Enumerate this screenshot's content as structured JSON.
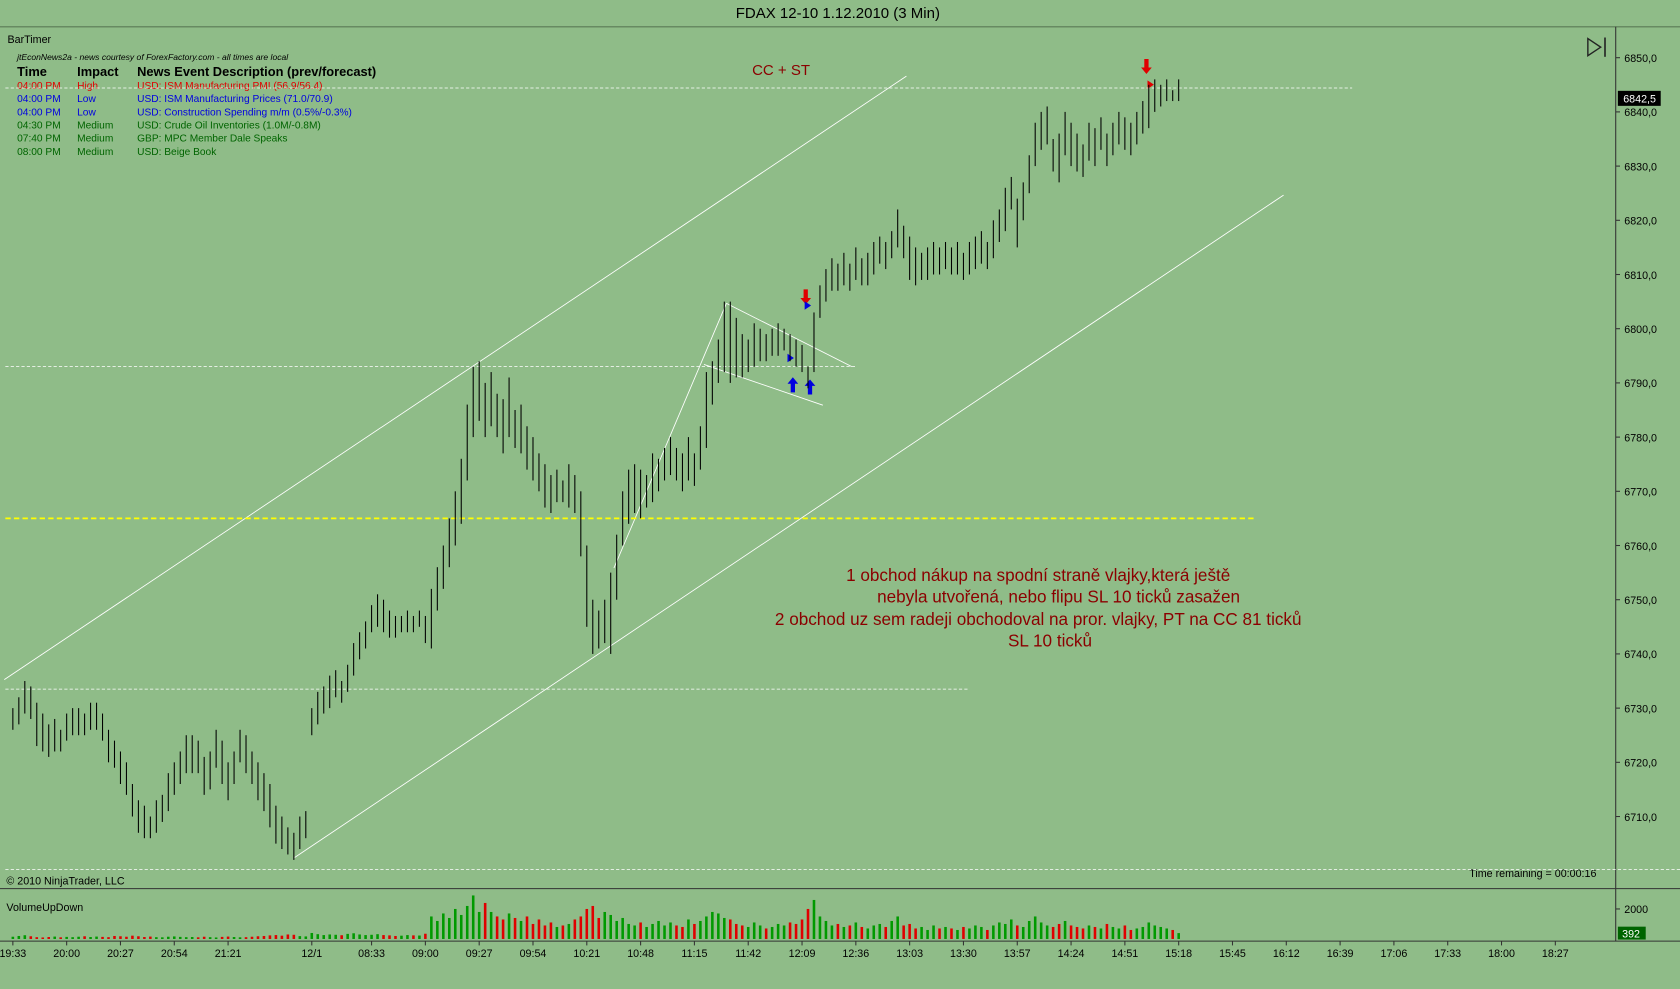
{
  "chart_data": {
    "type": "ohlc",
    "title": "FDAX 12-10  1.12.2010 (3 Min)",
    "indicator_label": "BarTimer",
    "copyright": "© 2010 NinjaTrader, LLC",
    "time_remaining": "Time remaining = 00:00:16",
    "volume_label": "VolumeUpDown",
    "annotation_top": "CC + ST",
    "annotation_lines": [
      "1 obchod nákup na spodní straně vlajky,která ještě",
      "nebyla utvořená, nebo flipu SL 10 ticků zasažen",
      "2 obchod uz sem radeji obchodoval na pror. vlajky, PT na CC 81 ticků",
      "SL 10 ticků"
    ],
    "bar_color": "#000000",
    "volume_up_color": "#009a00",
    "volume_down_color": "#e00000",
    "xlim": [
      -2.15,
      268.1
    ],
    "ylim": [
      6696.9,
      6855.7
    ],
    "vlim": [
      0,
      3285
    ],
    "xticks": [
      {
        "value": 0,
        "label": "19:33"
      },
      {
        "value": 9,
        "label": "20:00"
      },
      {
        "value": 18,
        "label": "20:27"
      },
      {
        "value": 27,
        "label": "20:54"
      },
      {
        "value": 36,
        "label": "21:21"
      },
      {
        "value": 50,
        "label": "12/1"
      },
      {
        "value": 60,
        "label": "08:33"
      },
      {
        "value": 69,
        "label": "09:00"
      },
      {
        "value": 78,
        "label": "09:27"
      },
      {
        "value": 87,
        "label": "09:54"
      },
      {
        "value": 96,
        "label": "10:21"
      },
      {
        "value": 105,
        "label": "10:48"
      },
      {
        "value": 114,
        "label": "11:15"
      },
      {
        "value": 123,
        "label": "11:42"
      },
      {
        "value": 132,
        "label": "12:09"
      },
      {
        "value": 141,
        "label": "12:36"
      },
      {
        "value": 150,
        "label": "13:03"
      },
      {
        "value": 159,
        "label": "13:30"
      },
      {
        "value": 168,
        "label": "13:57"
      },
      {
        "value": 177,
        "label": "14:24"
      },
      {
        "value": 186,
        "label": "14:51"
      },
      {
        "value": 195,
        "label": "15:18"
      },
      {
        "value": 204,
        "label": "15:45"
      },
      {
        "value": 213,
        "label": "16:12"
      },
      {
        "value": 222,
        "label": "16:39"
      },
      {
        "value": 231,
        "label": "17:06"
      },
      {
        "value": 240,
        "label": "17:33"
      },
      {
        "value": 249,
        "label": "18:00"
      },
      {
        "value": 258,
        "label": "18:27"
      }
    ],
    "yticks": [
      {
        "value": 6710,
        "label": "6710,0"
      },
      {
        "value": 6720,
        "label": "6720,0"
      },
      {
        "value": 6730,
        "label": "6730,0"
      },
      {
        "value": 6740,
        "label": "6740,0"
      },
      {
        "value": 6750,
        "label": "6750,0"
      },
      {
        "value": 6760,
        "label": "6760,0"
      },
      {
        "value": 6770,
        "label": "6770,0"
      },
      {
        "value": 6780,
        "label": "6780,0"
      },
      {
        "value": 6790,
        "label": "6790,0"
      },
      {
        "value": 6800,
        "label": "6800,0"
      },
      {
        "value": 6810,
        "label": "6810,0"
      },
      {
        "value": 6820,
        "label": "6820,0"
      },
      {
        "value": 6830,
        "label": "6830,0"
      },
      {
        "value": 6840,
        "label": "6840,0"
      },
      {
        "value": 6850,
        "label": "6850,0"
      }
    ],
    "vticks": [
      2000
    ],
    "last_price": {
      "value": 6842.5,
      "label": "6842,5"
    },
    "horizontal_lines": [
      {
        "value": 6844.4,
        "color": "#ffffff"
      },
      {
        "value": 6793,
        "color": "#ffffff"
      },
      {
        "value": 6765,
        "color": "#ffff00"
      },
      {
        "value": 6733.5,
        "color": "#ffffff"
      },
      {
        "value": 6700.2,
        "color": "#ffffff"
      }
    ],
    "high": [
      6730,
      6732,
      6735,
      6734,
      6731,
      6729,
      6727,
      6728,
      6726,
      6729,
      6730,
      6730,
      6729,
      6731,
      6731,
      6729,
      6726,
      6724,
      6722,
      6720,
      6716,
      6713,
      6712,
      6710,
      6713,
      6714,
      6718,
      6720,
      6722,
      6725,
      6725,
      6724,
      6721,
      6722,
      6726,
      6724,
      6720,
      6722,
      6726,
      6725,
      6722,
      6720,
      6718,
      6716,
      6712,
      6710,
      6708,
      6707,
      6710,
      6711,
      6730,
      6733,
      6734,
      6736,
      6737,
      6735,
      6738,
      6742,
      6744,
      6746,
      6749,
      6751,
      6750,
      6748,
      6747,
      6747,
      6748,
      6747,
      6748,
      6747,
      6752,
      6756,
      6760,
      6765,
      6770,
      6776,
      6786,
      6793,
      6794,
      6790,
      6792,
      6788,
      6787,
      6791,
      6785,
      6786,
      6782,
      6780,
      6777,
      6775,
      6773,
      6774,
      6772,
      6775,
      6773,
      6770,
      6760,
      6750,
      6748,
      6750,
      6755,
      6762,
      6770,
      6774,
      6775,
      6774,
      6773,
      6777,
      6776,
      6778,
      6780,
      6778,
      6777,
      6780,
      6777,
      6782,
      6792,
      6794,
      6798,
      6805,
      6805,
      6802,
      6799,
      6798,
      6801,
      6800,
      6799,
      6800,
      6801,
      6800,
      6799,
      6798,
      6797,
      6793,
      6803,
      6808,
      6811,
      6813,
      6812,
      6814,
      6812,
      6815,
      6813,
      6814,
      6816,
      6817,
      6816,
      6818,
      6822,
      6819,
      6817,
      6815,
      6814,
      6815,
      6816,
      6815,
      6816,
      6815,
      6816,
      6814,
      6816,
      6817,
      6818,
      6816,
      6820,
      6822,
      6826,
      6828,
      6824,
      6827,
      6832,
      6838,
      6840,
      6841,
      6835,
      6836,
      6840,
      6838,
      6836,
      6834,
      6838,
      6837,
      6839,
      6836,
      6838,
      6840,
      6839,
      6838,
      6840,
      6842,
      6845,
      6846,
      6845,
      6846,
      6844,
      6846
    ],
    "low": [
      6726,
      6727,
      6729,
      6728,
      6723,
      6722,
      6721,
      6722,
      6722,
      6724,
      6725,
      6725,
      6725,
      6726,
      6726,
      6724,
      6720,
      6719,
      6716,
      6714,
      6710,
      6707,
      6706,
      6706,
      6707,
      6709,
      6711,
      6714,
      6716,
      6718,
      6718,
      6718,
      6714,
      6715,
      6719,
      6716,
      6713,
      6716,
      6720,
      6718,
      6716,
      6713,
      6711,
      6708,
      6705,
      6704,
      6703,
      6702,
      6704,
      6706,
      6725,
      6727,
      6729,
      6730,
      6732,
      6731,
      6733,
      6736,
      6739,
      6741,
      6744,
      6745,
      6744,
      6743,
      6743,
      6744,
      6744,
      6744,
      6745,
      6742,
      6741,
      6748,
      6752,
      6756,
      6760,
      6764,
      6772,
      6780,
      6783,
      6780,
      6782,
      6780,
      6777,
      6780,
      6778,
      6777,
      6774,
      6772,
      6770,
      6767,
      6766,
      6768,
      6768,
      6767,
      6766,
      6758,
      6745,
      6740,
      6741,
      6742,
      6740,
      6750,
      6760,
      6764,
      6766,
      6765,
      6767,
      6768,
      6770,
      6772,
      6773,
      6772,
      6770,
      6772,
      6771,
      6774,
      6778,
      6786,
      6790,
      6792,
      6790,
      6791,
      6791,
      6792,
      6793,
      6794,
      6794,
      6795,
      6795,
      6796,
      6794,
      6793,
      6792,
      6789,
      6792,
      6802,
      6805,
      6807,
      6807,
      6808,
      6807,
      6809,
      6808,
      6808,
      6810,
      6812,
      6811,
      6813,
      6815,
      6813,
      6809,
      6808,
      6809,
      6809,
      6810,
      6810,
      6811,
      6810,
      6810,
      6809,
      6810,
      6811,
      6812,
      6811,
      6813,
      6816,
      6818,
      6822,
      6815,
      6820,
      6825,
      6830,
      6833,
      6834,
      6829,
      6827,
      6832,
      6830,
      6829,
      6828,
      6831,
      6830,
      6833,
      6830,
      6832,
      6834,
      6833,
      6832,
      6834,
      6836,
      6837,
      6840,
      6841,
      6842,
      6842,
      6842
    ],
    "volume": [
      150,
      200,
      250,
      180,
      120,
      100,
      130,
      160,
      110,
      140,
      120,
      150,
      180,
      130,
      160,
      140,
      120,
      200,
      180,
      150,
      220,
      180,
      130,
      160,
      120,
      110,
      150,
      170,
      140,
      120,
      130,
      110,
      150,
      120,
      100,
      140,
      160,
      130,
      110,
      120,
      150,
      180,
      200,
      240,
      260,
      220,
      300,
      280,
      190,
      170,
      400,
      320,
      260,
      300,
      280,
      250,
      340,
      380,
      300,
      260,
      280,
      320,
      260,
      240,
      200,
      220,
      260,
      240,
      230,
      350,
      1500,
      1200,
      1700,
      1400,
      2000,
      1600,
      2200,
      2900,
      1800,
      2400,
      1800,
      1500,
      1300,
      1700,
      1400,
      1200,
      1500,
      1000,
      1300,
      900,
      1100,
      800,
      900,
      1000,
      1300,
      1500,
      2000,
      2200,
      1400,
      1800,
      1600,
      1200,
      1400,
      1000,
      900,
      1100,
      800,
      1000,
      1200,
      900,
      1100,
      900,
      800,
      1300,
      1000,
      1200,
      1500,
      1800,
      1700,
      1400,
      1300,
      1000,
      900,
      800,
      1100,
      900,
      700,
      800,
      1000,
      900,
      1100,
      1000,
      1300,
      2000,
      2600,
      1500,
      1200,
      900,
      1000,
      800,
      900,
      1100,
      800,
      700,
      900,
      1000,
      800,
      1200,
      1500,
      900,
      1000,
      700,
      800,
      600,
      900,
      700,
      800,
      700,
      600,
      800,
      700,
      900,
      800,
      600,
      900,
      1100,
      1000,
      1300,
      900,
      800,
      1200,
      1500,
      1100,
      900,
      800,
      1000,
      1200,
      900,
      800,
      700,
      900,
      800,
      700,
      1000,
      800,
      700,
      900,
      600,
      700,
      800,
      1100,
      900,
      800,
      700,
      600,
      392
    ]
  },
  "news": {
    "source": "jtEconNews2a - news courtesy of ForexFactory.com - all times are local",
    "header": [
      "Time",
      "Impact",
      "News Event Description (prev/forecast)"
    ],
    "rows": [
      [
        "04:00 PM",
        "High",
        "USD: ISM Manufacturing PMI (56.9/56.4)"
      ],
      [
        "04:00 PM",
        "Low",
        "USD: ISM Manufacturing Prices (71.0/70.9)"
      ],
      [
        "04:00 PM",
        "Low",
        "USD: Construction Spending m/m (0.5%/-0.3%)"
      ],
      [
        "04:30 PM",
        "Medium",
        "USD: Crude Oil Inventories (1.0M/-0.8M)"
      ],
      [
        "07:40 PM",
        "Medium",
        "GBP: MPC Member Dale Speaks"
      ],
      [
        "08:00 PM",
        "Medium",
        "USD: Beige Book"
      ]
    ],
    "row_colors": [
      "#e00000",
      "#0000e0",
      "#0000e0",
      "#006400",
      "#006400",
      "#006400"
    ]
  }
}
